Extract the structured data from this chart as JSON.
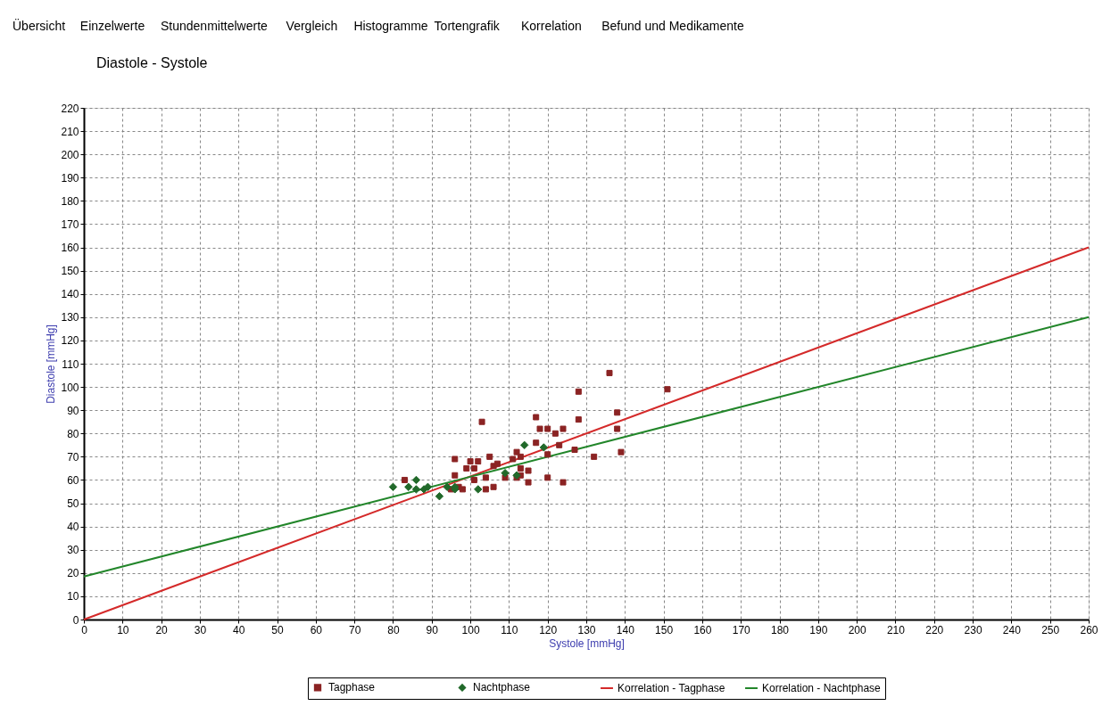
{
  "chart_data": {
    "type": "scatter",
    "title": "Diastole  - Systole",
    "xlabel": "Systole [mmHg]",
    "ylabel": "Diastole [mmHg]",
    "annotations": [
      "Übersicht",
      "Einzelwerte",
      "Stundenmittelwerte",
      "Vergleich",
      "Histogramme",
      "Tortengrafik",
      "Korrelation",
      "Befund und Medikamente"
    ],
    "xlim": [
      0,
      260
    ],
    "ylim": [
      0,
      220
    ],
    "xticks": [
      0,
      10,
      20,
      30,
      40,
      50,
      60,
      70,
      80,
      90,
      100,
      110,
      120,
      130,
      140,
      150,
      160,
      170,
      180,
      190,
      200,
      210,
      220,
      230,
      240,
      250,
      260
    ],
    "yticks": [
      0,
      10,
      20,
      30,
      40,
      50,
      60,
      70,
      80,
      90,
      100,
      110,
      120,
      130,
      140,
      150,
      160,
      170,
      180,
      190,
      200,
      210,
      220
    ],
    "grid": true,
    "legend": "bottom",
    "series": [
      {
        "name": "Tagphase",
        "marker": "square",
        "color": "#8b2323",
        "x": [
          83,
          95,
          96,
          96,
          97,
          98,
          99,
          100,
          101,
          101,
          102,
          103,
          104,
          104,
          105,
          106,
          106,
          107,
          109,
          111,
          112,
          113,
          113,
          113,
          112,
          115,
          115,
          117,
          117,
          118,
          120,
          120,
          120,
          122,
          123,
          124,
          124,
          127,
          128,
          128,
          132,
          136,
          138,
          138,
          139,
          151
        ],
        "values": [
          60,
          56,
          69,
          62,
          57,
          56,
          65,
          68,
          65,
          60,
          68,
          85,
          61,
          56,
          70,
          66,
          57,
          67,
          61,
          69,
          72,
          70,
          65,
          62,
          61,
          64,
          59,
          87,
          76,
          82,
          82,
          71,
          61,
          80,
          75,
          82,
          59,
          73,
          98,
          86,
          70,
          106,
          89,
          82,
          72,
          99
        ]
      },
      {
        "name": "Nachtphase",
        "marker": "diamond",
        "color": "#21692a",
        "x": [
          80,
          84,
          86,
          86,
          88,
          89,
          92,
          94,
          96,
          96,
          102,
          109,
          112,
          114,
          119
        ],
        "values": [
          57,
          57,
          60,
          56,
          56,
          57,
          53,
          57,
          57,
          56,
          56,
          63,
          62,
          75,
          74
        ]
      },
      {
        "name": "Korrelation - Tagphase",
        "type": "line",
        "color": "#d42a2a",
        "x": [
          0,
          260
        ],
        "values": [
          0,
          160
        ]
      },
      {
        "name": "Korrelation - Nachtphase",
        "type": "line",
        "color": "#22862a",
        "x": [
          0,
          260
        ],
        "values": [
          18.5,
          130
        ]
      }
    ]
  }
}
